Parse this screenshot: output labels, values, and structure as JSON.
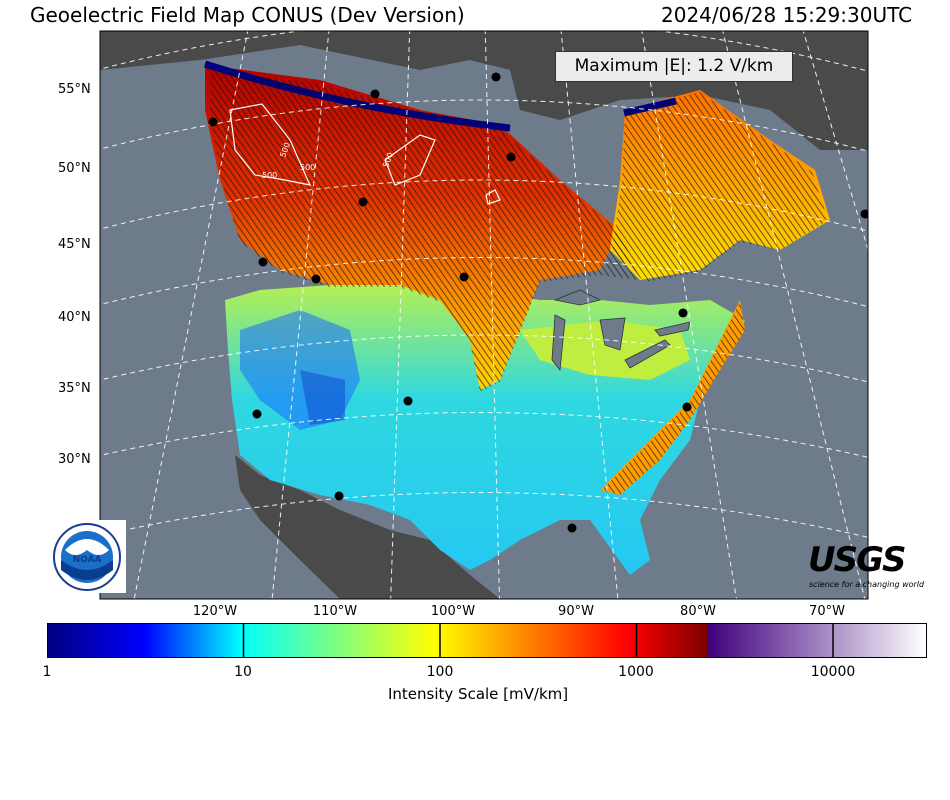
{
  "title": "Geoelectric Field Map CONUS (Dev Version)",
  "timestamp": "2024/06/28 15:29:30UTC",
  "maximum_label": "Maximum |E|: 1.2 V/km",
  "contour_labels": [
    "500",
    "500",
    "500",
    "500"
  ],
  "latitude_labels": [
    "55°N",
    "50°N",
    "45°N",
    "40°N",
    "35°N",
    "30°N"
  ],
  "longitude_labels": [
    "120°W",
    "110°W",
    "100°W",
    "90°W",
    "80°W",
    "70°W"
  ],
  "colorbar": {
    "label": "Intensity Scale [mV/km]",
    "tick_labels": [
      "1",
      "10",
      "100",
      "1000",
      "10000"
    ],
    "ticks": [
      1,
      10,
      100,
      1000,
      10000
    ],
    "scale": "log",
    "colors": [
      "#00007f",
      "#0000ff",
      "#00ffff",
      "#ffff00",
      "#ff7f00",
      "#ff0000",
      "#7f0000",
      "#3f007d",
      "#ffffff"
    ]
  },
  "logos": {
    "left": {
      "name": "noaa-logo",
      "text": "NOAA"
    },
    "right": {
      "name": "usgs-logo",
      "text": "USGS",
      "tagline": "science for a changing world"
    }
  },
  "colors": {
    "ocean": "#6e7b8b",
    "land_outside": "#4d4d4d",
    "graticule": "#ffffff"
  }
}
